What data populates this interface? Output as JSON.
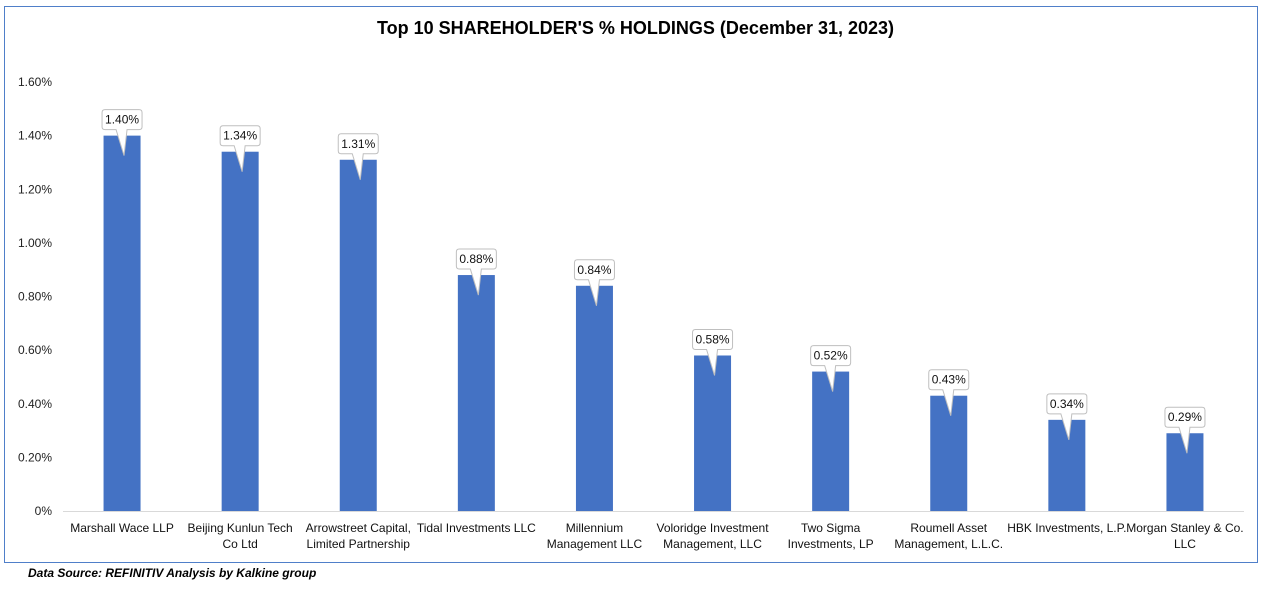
{
  "chart_data": {
    "type": "bar",
    "title": "Top 10 SHAREHOLDER'S % HOLDINGS (December 31, 2023)",
    "categories": [
      [
        "Marshall Wace LLP"
      ],
      [
        "Beijing Kunlun Tech",
        "Co Ltd"
      ],
      [
        "Arrowstreet Capital,",
        "Limited Partnership"
      ],
      [
        "Tidal Investments LLC"
      ],
      [
        "Millennium",
        "Management LLC"
      ],
      [
        "Voloridge Investment",
        "Management, LLC"
      ],
      [
        "Two Sigma",
        "Investments, LP"
      ],
      [
        "Roumell Asset",
        "Management, L.L.C."
      ],
      [
        "HBK Investments, L.P."
      ],
      [
        "Morgan Stanley & Co.",
        "LLC"
      ]
    ],
    "values": [
      1.4,
      1.34,
      1.31,
      0.88,
      0.84,
      0.58,
      0.52,
      0.43,
      0.34,
      0.29
    ],
    "data_labels": [
      "1.40%",
      "1.34%",
      "1.31%",
      "0.88%",
      "0.84%",
      "0.58%",
      "0.52%",
      "0.43%",
      "0.34%",
      "0.29%"
    ],
    "y_ticks": [
      0,
      0.2,
      0.4,
      0.6,
      0.8,
      1.0,
      1.2,
      1.4,
      1.6
    ],
    "y_tick_labels": [
      "0%",
      "0.20%",
      "0.40%",
      "0.60%",
      "0.80%",
      "1.00%",
      "1.20%",
      "1.40%",
      "1.60%"
    ],
    "ylim": [
      0,
      1.6
    ],
    "xlabel": "",
    "ylabel": "",
    "grid": false,
    "bar_color": "#4472c4"
  },
  "footer": {
    "source": "Data Source: REFINITIV Analysis by Kalkine group"
  }
}
